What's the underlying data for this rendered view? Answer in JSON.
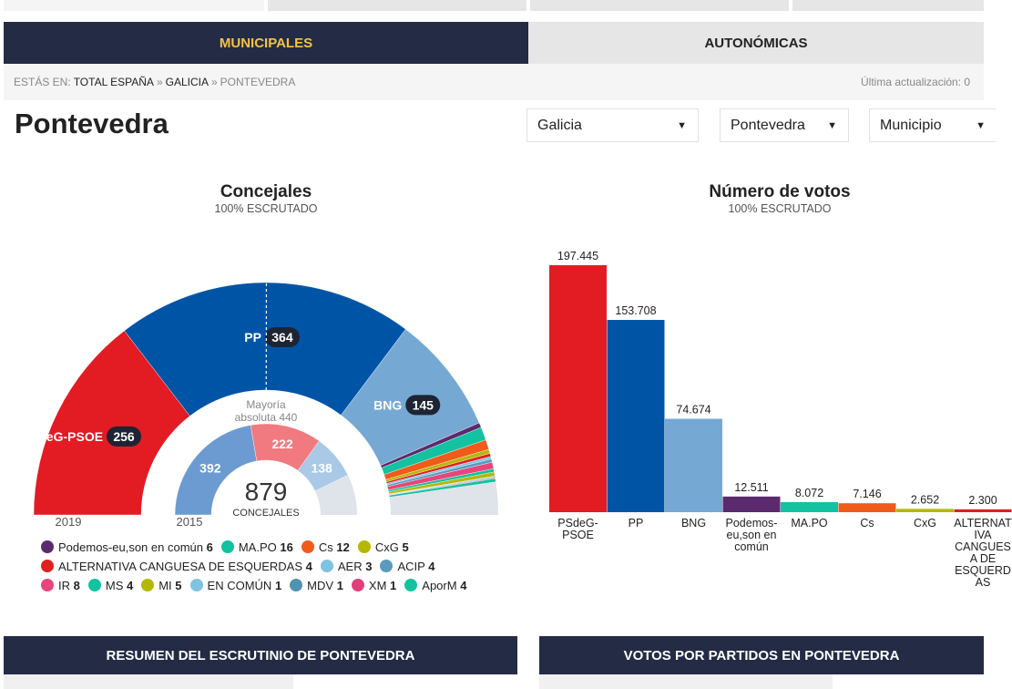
{
  "nav": {
    "tabs": [
      "MUNICIPALES",
      "AUTONÓMICAS"
    ]
  },
  "breadcrumb": {
    "prefix": "ESTÁS EN:",
    "items": [
      "TOTAL ESPAÑA",
      "GALICIA",
      "PONTEVEDRA"
    ],
    "separator": "»",
    "updated": "Última actualización: 0"
  },
  "header": {
    "title": "Pontevedra",
    "selects": [
      "Galicia",
      "Pontevedra",
      "Municipio"
    ]
  },
  "chart_data": [
    {
      "type": "hemicycle",
      "title": "Concejales",
      "subtitle": "100% ESCRUTADO",
      "total": 879,
      "total_label": "CONCEJALES",
      "majority_label": "Mayoría absoluta",
      "majority": 440,
      "series": [
        {
          "name": "2019",
          "categories": [
            "PSdeG-PSOE",
            "PP",
            "BNG",
            "Podemos-eu,son en común",
            "MA.PO",
            "Cs",
            "CxG",
            "ALTERNATIVA CANGUESA DE ESQUERDAS",
            "AER",
            "ACIP",
            "IR",
            "MS",
            "MI",
            "EN COMÚN",
            "MDV",
            "XM",
            "AporM"
          ],
          "values": [
            256,
            364,
            145,
            6,
            16,
            12,
            5,
            4,
            3,
            4,
            8,
            4,
            5,
            1,
            1,
            1,
            4
          ],
          "colors": [
            "#e31b23",
            "#0054a6",
            "#75a9d4",
            "#5b2a6e",
            "#12c2a0",
            "#f05a1a",
            "#b5b800",
            "#e02020",
            "#7fc3e0",
            "#5a9bbf",
            "#e8457a",
            "#12c2a0",
            "#b5b800",
            "#7fc3e0",
            "#4f93b0",
            "#e0407a",
            "#12c2a0"
          ]
        },
        {
          "name": "2015",
          "values": [
            392,
            222,
            138
          ],
          "colors": [
            "#6b9bd1",
            "#f07a7f",
            "#a9c9e6"
          ]
        }
      ]
    },
    {
      "type": "bar",
      "title": "Número de votos",
      "subtitle": "100% ESCRUTADO",
      "categories": [
        "PSdeG-PSOE",
        "PP",
        "BNG",
        "Podemos-eu,son en común",
        "MA.PO",
        "Cs",
        "CxG",
        "ALTERNATIVA CANGUESA DE ESQUERDAS"
      ],
      "values": [
        197445,
        153708,
        74674,
        12511,
        8072,
        7146,
        2652,
        2300
      ],
      "value_labels": [
        "197.445",
        "153.708",
        "74.674",
        "12.511",
        "8.072",
        "7.146",
        "2.652",
        "2.300"
      ],
      "colors": [
        "#e31b23",
        "#0054a6",
        "#75a9d4",
        "#5b2a6e",
        "#12c2a0",
        "#f05a1a",
        "#b5b800",
        "#e02020"
      ],
      "ylim": [
        0,
        200000
      ]
    }
  ],
  "sections": [
    "RESUMEN DEL ESCRUTINIO DE PONTEVEDRA",
    "VOTOS POR PARTIDOS EN PONTEVEDRA"
  ]
}
